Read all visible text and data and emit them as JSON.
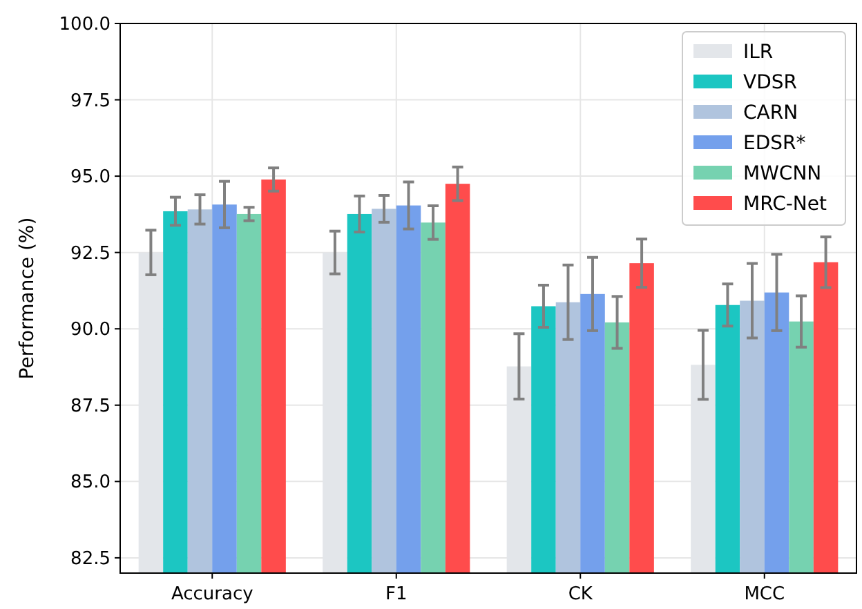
{
  "chart_data": {
    "type": "bar",
    "ylabel": "Performance (%)",
    "categories": [
      "Accuracy",
      "F1",
      "CK",
      "MCC"
    ],
    "ylim": [
      82,
      100
    ],
    "yticks": [
      {
        "value": 82.5,
        "label": "82.5"
      },
      {
        "value": 85,
        "label": "85.0"
      },
      {
        "value": 87.5,
        "label": "87.5"
      },
      {
        "value": 90,
        "label": "90.0"
      },
      {
        "value": 92.5,
        "label": "92.5"
      },
      {
        "value": 95,
        "label": "95.0"
      },
      {
        "value": 97.5,
        "label": "97.5"
      },
      {
        "value": 100,
        "label": "100.0"
      }
    ],
    "grid": true,
    "legend": "top right",
    "series": [
      {
        "name": "ILR",
        "color": "#e3e6ea",
        "values": [
          92.5,
          92.5,
          88.77,
          88.82
        ],
        "errors": [
          0.73,
          0.7,
          1.07,
          1.13
        ]
      },
      {
        "name": "VDSR",
        "color": "#1cc6c2",
        "values": [
          93.85,
          93.76,
          90.74,
          90.78
        ],
        "errors": [
          0.46,
          0.59,
          0.69,
          0.69
        ]
      },
      {
        "name": "CARN",
        "color": "#b0c4de",
        "values": [
          93.91,
          93.93,
          90.87,
          90.92
        ],
        "errors": [
          0.48,
          0.44,
          1.22,
          1.22
        ]
      },
      {
        "name": "EDSR*",
        "color": "#74a0ec",
        "values": [
          94.07,
          94.04,
          91.14,
          91.19
        ],
        "errors": [
          0.76,
          0.77,
          1.2,
          1.25
        ]
      },
      {
        "name": "MWCNN",
        "color": "#76d2b0",
        "values": [
          93.76,
          93.48,
          90.21,
          90.24
        ],
        "errors": [
          0.22,
          0.55,
          0.85,
          0.84
        ]
      },
      {
        "name": "MRC-Net",
        "color": "#ff4c4c",
        "values": [
          94.89,
          94.75,
          92.15,
          92.18
        ],
        "errors": [
          0.38,
          0.55,
          0.79,
          0.83
        ]
      }
    ]
  }
}
